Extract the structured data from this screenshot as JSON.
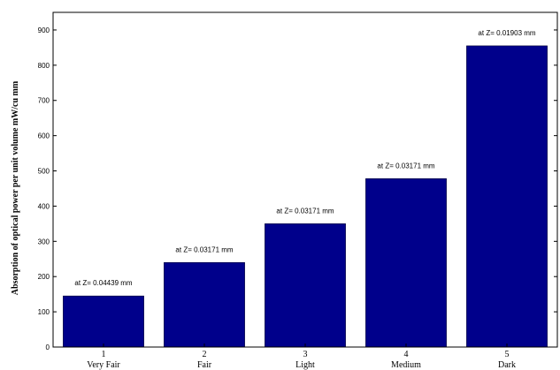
{
  "chart_data": {
    "type": "bar",
    "categories": [
      "1",
      "2",
      "3",
      "4",
      "5"
    ],
    "category_names": [
      "Very Fair",
      "Fair",
      "Light",
      "Medium",
      "Dark"
    ],
    "values": [
      145,
      240,
      350,
      478,
      855
    ],
    "annotations": [
      "at Z= 0.04439 mm",
      "at Z= 0.03171 mm",
      "at Z= 0.03171 mm",
      "at Z= 0.03171 mm",
      "at Z= 0.01903 mm"
    ],
    "title": "",
    "xlabel": "",
    "ylabel": "Absorption of optical power per unit volume mW/cu mm",
    "ylim": [
      0,
      950
    ],
    "yticks": [
      0,
      100,
      200,
      300,
      400,
      500,
      600,
      700,
      800,
      900
    ],
    "bar_color": "#00008b",
    "grid": false
  }
}
